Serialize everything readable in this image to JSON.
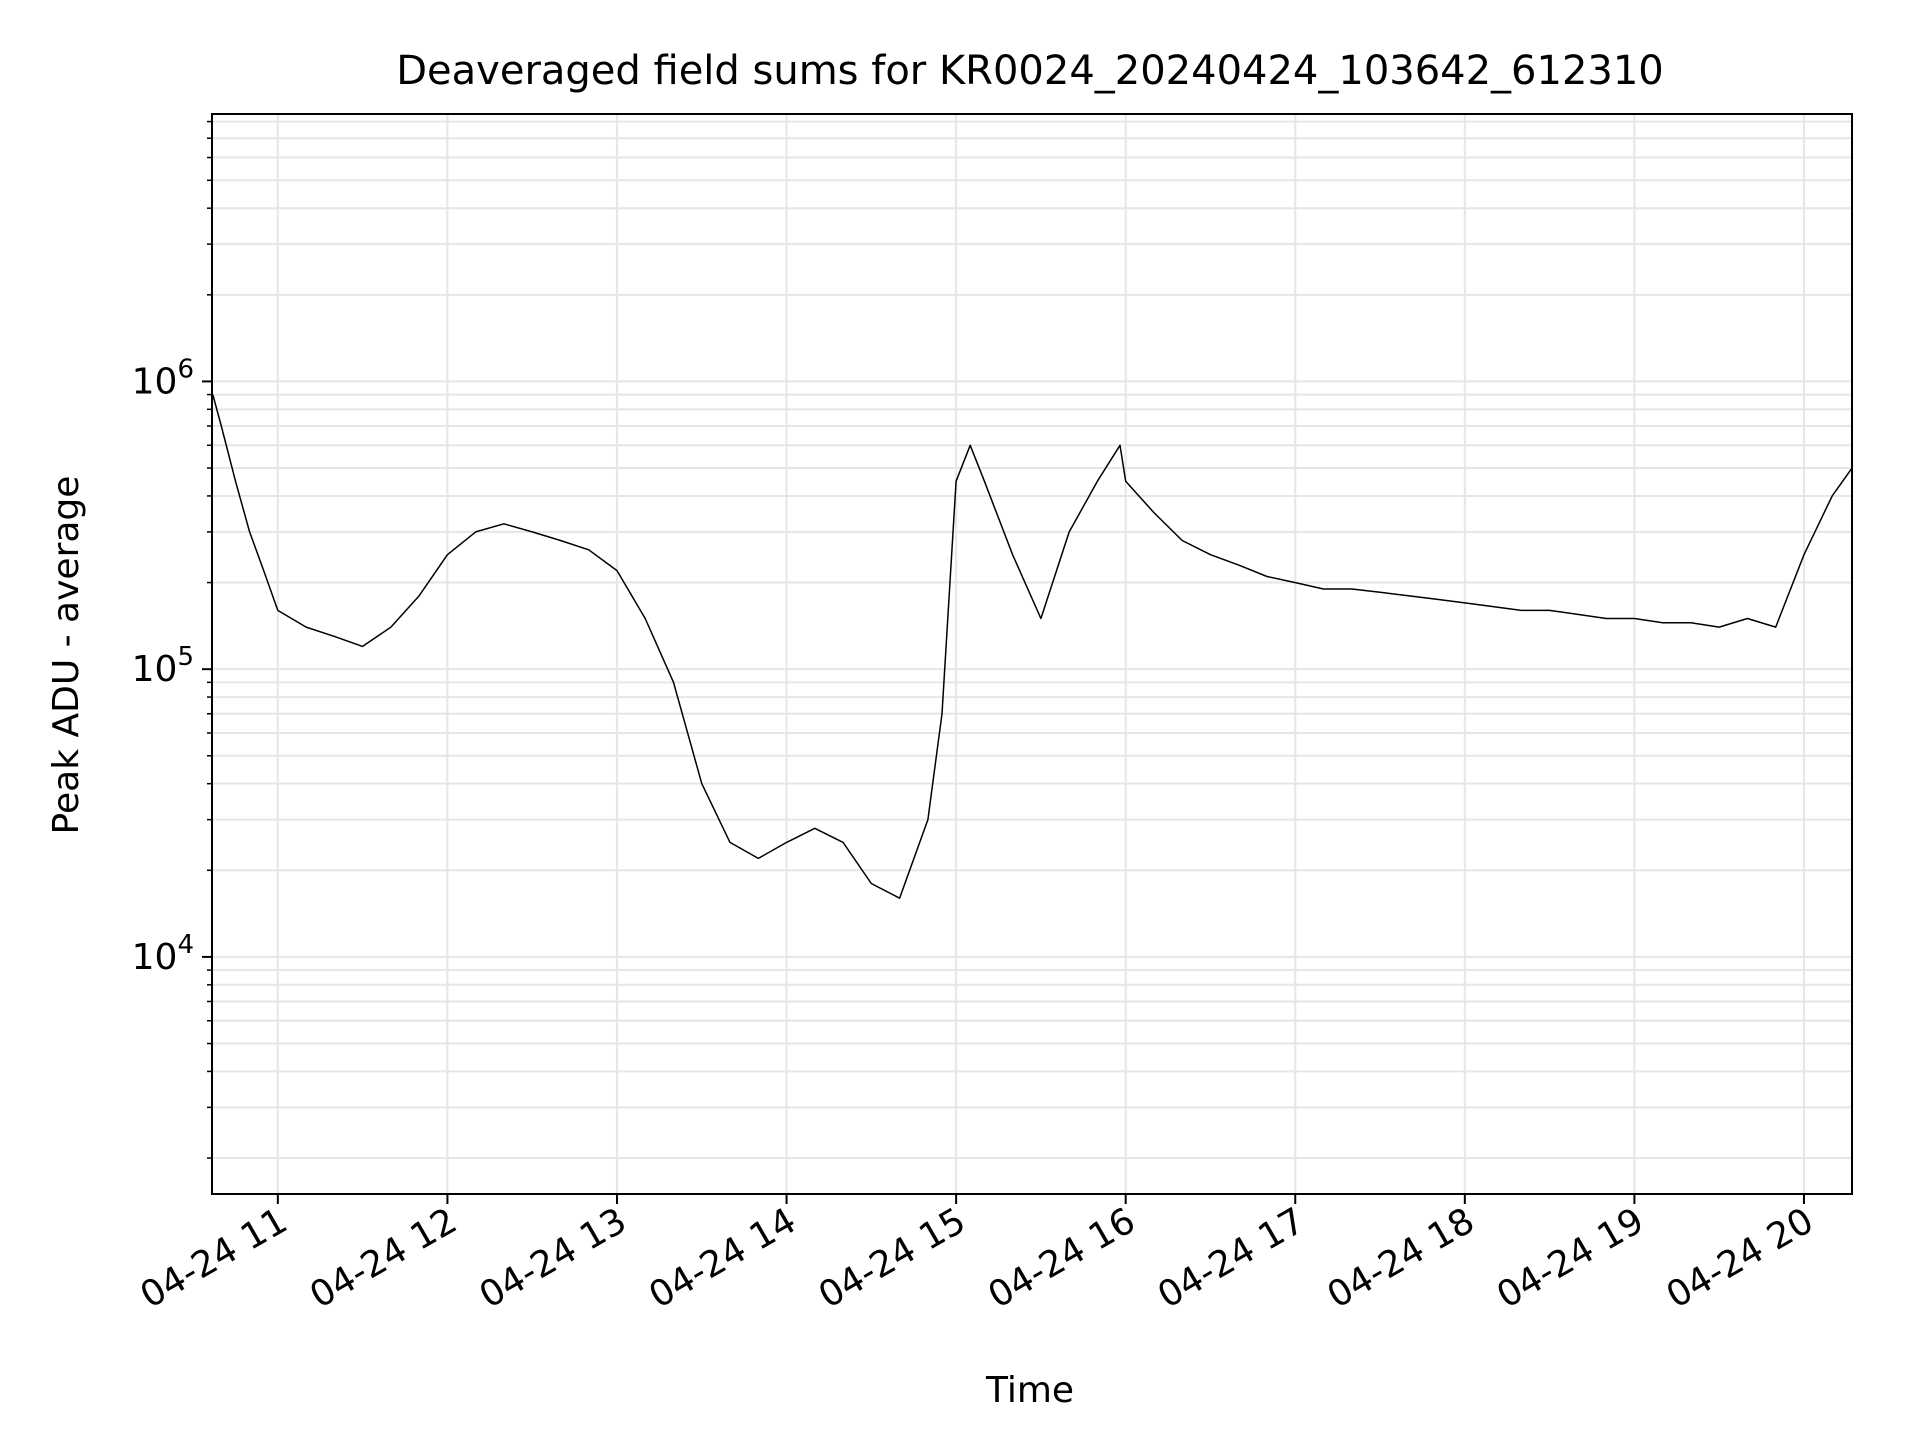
{
  "chart_data": {
    "type": "line",
    "title": "Deaveraged field sums for KR0024_20240424_103642_612310",
    "xlabel": "Time",
    "ylabel": "Peak ADU - average",
    "x_scale": "time",
    "y_scale": "log",
    "xlim": [
      "2024-04-24T10:36:42",
      "2024-04-24T20:17:00"
    ],
    "ylim": [
      1500,
      8500000
    ],
    "x_ticks": [
      {
        "t": "2024-04-24T11:00",
        "label": "04-24 11"
      },
      {
        "t": "2024-04-24T12:00",
        "label": "04-24 12"
      },
      {
        "t": "2024-04-24T13:00",
        "label": "04-24 13"
      },
      {
        "t": "2024-04-24T14:00",
        "label": "04-24 14"
      },
      {
        "t": "2024-04-24T15:00",
        "label": "04-24 15"
      },
      {
        "t": "2024-04-24T16:00",
        "label": "04-24 16"
      },
      {
        "t": "2024-04-24T17:00",
        "label": "04-24 17"
      },
      {
        "t": "2024-04-24T18:00",
        "label": "04-24 18"
      },
      {
        "t": "2024-04-24T19:00",
        "label": "04-24 19"
      },
      {
        "t": "2024-04-24T20:00",
        "label": "04-24 20"
      }
    ],
    "y_ticks": [
      {
        "value": 10000,
        "base": "10",
        "exp": "4"
      },
      {
        "value": 100000,
        "base": "10",
        "exp": "5"
      },
      {
        "value": 1000000,
        "base": "10",
        "exp": "6"
      }
    ],
    "grid": true,
    "line_color": "#000000",
    "series": [
      {
        "x": [
          "2024-04-24T10:37",
          "2024-04-24T10:40",
          "2024-04-24T10:45",
          "2024-04-24T10:50",
          "2024-04-24T10:55",
          "2024-04-24T11:00",
          "2024-04-24T11:10",
          "2024-04-24T11:20",
          "2024-04-24T11:30",
          "2024-04-24T11:40",
          "2024-04-24T11:50",
          "2024-04-24T12:00",
          "2024-04-24T12:10",
          "2024-04-24T12:20",
          "2024-04-24T12:30",
          "2024-04-24T12:40",
          "2024-04-24T12:50",
          "2024-04-24T13:00",
          "2024-04-24T13:10",
          "2024-04-24T13:20",
          "2024-04-24T13:30",
          "2024-04-24T13:40",
          "2024-04-24T13:50",
          "2024-04-24T14:00",
          "2024-04-24T14:10",
          "2024-04-24T14:20",
          "2024-04-24T14:30",
          "2024-04-24T14:40",
          "2024-04-24T14:50",
          "2024-04-24T14:55",
          "2024-04-24T15:00",
          "2024-04-24T15:05",
          "2024-04-24T15:10",
          "2024-04-24T15:20",
          "2024-04-24T15:30",
          "2024-04-24T15:40",
          "2024-04-24T15:50",
          "2024-04-24T15:58",
          "2024-04-24T16:00",
          "2024-04-24T16:10",
          "2024-04-24T16:20",
          "2024-04-24T16:30",
          "2024-04-24T16:40",
          "2024-04-24T16:50",
          "2024-04-24T17:00",
          "2024-04-24T17:10",
          "2024-04-24T17:20",
          "2024-04-24T17:30",
          "2024-04-24T17:40",
          "2024-04-24T17:50",
          "2024-04-24T18:00",
          "2024-04-24T18:10",
          "2024-04-24T18:20",
          "2024-04-24T18:30",
          "2024-04-24T18:40",
          "2024-04-24T18:50",
          "2024-04-24T19:00",
          "2024-04-24T19:10",
          "2024-04-24T19:20",
          "2024-04-24T19:30",
          "2024-04-24T19:40",
          "2024-04-24T19:50",
          "2024-04-24T20:00",
          "2024-04-24T20:10",
          "2024-04-24T20:17"
        ],
        "y": [
          900000,
          700000,
          450000,
          300000,
          220000,
          160000,
          140000,
          130000,
          120000,
          140000,
          180000,
          250000,
          300000,
          320000,
          300000,
          280000,
          260000,
          220000,
          150000,
          90000,
          40000,
          25000,
          22000,
          25000,
          28000,
          25000,
          18000,
          16000,
          30000,
          70000,
          450000,
          600000,
          450000,
          250000,
          150000,
          300000,
          450000,
          600000,
          450000,
          350000,
          280000,
          250000,
          230000,
          210000,
          200000,
          190000,
          190000,
          185000,
          180000,
          175000,
          170000,
          165000,
          160000,
          160000,
          155000,
          150000,
          150000,
          145000,
          145000,
          140000,
          150000,
          140000,
          250000,
          400000,
          500000
        ]
      }
    ]
  }
}
